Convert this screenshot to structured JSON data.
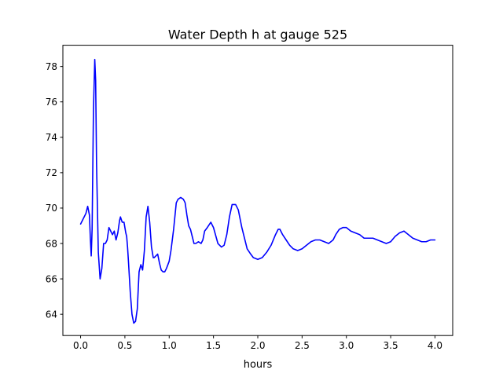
{
  "chart_data": {
    "type": "line",
    "title": "Water Depth h at gauge 525",
    "xlabel": "hours",
    "ylabel": "",
    "xlim": [
      -0.2,
      4.2
    ],
    "ylim": [
      62.8,
      79.2
    ],
    "grid": false,
    "legend": "none",
    "x_ticks": [
      0.0,
      0.5,
      1.0,
      1.5,
      2.0,
      2.5,
      3.0,
      3.5,
      4.0
    ],
    "x_tick_labels": [
      "0.0",
      "0.5",
      "1.0",
      "1.5",
      "2.0",
      "2.5",
      "3.0",
      "3.5",
      "4.0"
    ],
    "y_ticks": [
      64,
      66,
      68,
      70,
      72,
      74,
      76,
      78
    ],
    "y_tick_labels": [
      "64",
      "66",
      "68",
      "70",
      "72",
      "74",
      "76",
      "78"
    ],
    "series": [
      {
        "color": "#0000ff",
        "x": [
          0.0,
          0.03,
          0.06,
          0.08,
          0.1,
          0.11,
          0.12,
          0.13,
          0.145,
          0.16,
          0.17,
          0.18,
          0.2,
          0.22,
          0.24,
          0.26,
          0.28,
          0.3,
          0.32,
          0.34,
          0.36,
          0.38,
          0.4,
          0.42,
          0.44,
          0.45,
          0.47,
          0.49,
          0.5,
          0.51,
          0.52,
          0.53,
          0.54,
          0.56,
          0.58,
          0.6,
          0.62,
          0.64,
          0.66,
          0.68,
          0.7,
          0.72,
          0.74,
          0.76,
          0.78,
          0.8,
          0.82,
          0.83,
          0.85,
          0.87,
          0.89,
          0.91,
          0.93,
          0.95,
          0.97,
          1.0,
          1.02,
          1.05,
          1.08,
          1.1,
          1.13,
          1.16,
          1.18,
          1.2,
          1.22,
          1.24,
          1.26,
          1.28,
          1.3,
          1.33,
          1.36,
          1.38,
          1.4,
          1.43,
          1.47,
          1.5,
          1.55,
          1.59,
          1.62,
          1.65,
          1.68,
          1.71,
          1.75,
          1.78,
          1.8,
          1.82,
          1.85,
          1.88,
          1.92,
          1.95,
          2.0,
          2.05,
          2.1,
          2.15,
          2.2,
          2.23,
          2.25,
          2.28,
          2.32,
          2.36,
          2.4,
          2.45,
          2.5,
          2.55,
          2.6,
          2.65,
          2.7,
          2.75,
          2.8,
          2.85,
          2.88,
          2.92,
          2.96,
          3.0,
          3.05,
          3.1,
          3.15,
          3.2,
          3.25,
          3.3,
          3.35,
          3.4,
          3.45,
          3.5,
          3.55,
          3.6,
          3.65,
          3.7,
          3.75,
          3.8,
          3.85,
          3.9,
          3.95,
          4.0
        ],
        "y": [
          69.1,
          69.4,
          69.7,
          70.1,
          69.6,
          68.3,
          67.3,
          68.8,
          75.5,
          78.4,
          77.2,
          72.5,
          67.5,
          66.0,
          66.6,
          68.0,
          68.0,
          68.2,
          68.9,
          68.7,
          68.5,
          68.7,
          68.2,
          68.6,
          69.3,
          69.5,
          69.2,
          69.2,
          68.9,
          68.6,
          68.4,
          67.8,
          67.0,
          65.3,
          64.0,
          63.5,
          63.6,
          64.3,
          66.4,
          66.8,
          66.5,
          67.6,
          69.5,
          70.1,
          69.2,
          67.8,
          67.2,
          67.2,
          67.3,
          67.4,
          66.9,
          66.5,
          66.4,
          66.4,
          66.6,
          67.0,
          67.6,
          68.8,
          70.3,
          70.5,
          70.6,
          70.5,
          70.3,
          69.6,
          69.0,
          68.8,
          68.4,
          68.0,
          68.0,
          68.1,
          68.0,
          68.2,
          68.7,
          68.9,
          69.2,
          68.9,
          68.0,
          67.8,
          67.9,
          68.5,
          69.5,
          70.2,
          70.2,
          69.9,
          69.4,
          68.9,
          68.3,
          67.7,
          67.4,
          67.2,
          67.1,
          67.2,
          67.5,
          67.9,
          68.5,
          68.8,
          68.8,
          68.5,
          68.2,
          67.9,
          67.7,
          67.6,
          67.7,
          67.9,
          68.1,
          68.2,
          68.2,
          68.1,
          68.0,
          68.2,
          68.5,
          68.8,
          68.9,
          68.9,
          68.7,
          68.6,
          68.5,
          68.3,
          68.3,
          68.3,
          68.2,
          68.1,
          68.0,
          68.1,
          68.4,
          68.6,
          68.7,
          68.5,
          68.3,
          68.2,
          68.1,
          68.1,
          68.2,
          68.2
        ]
      }
    ]
  }
}
